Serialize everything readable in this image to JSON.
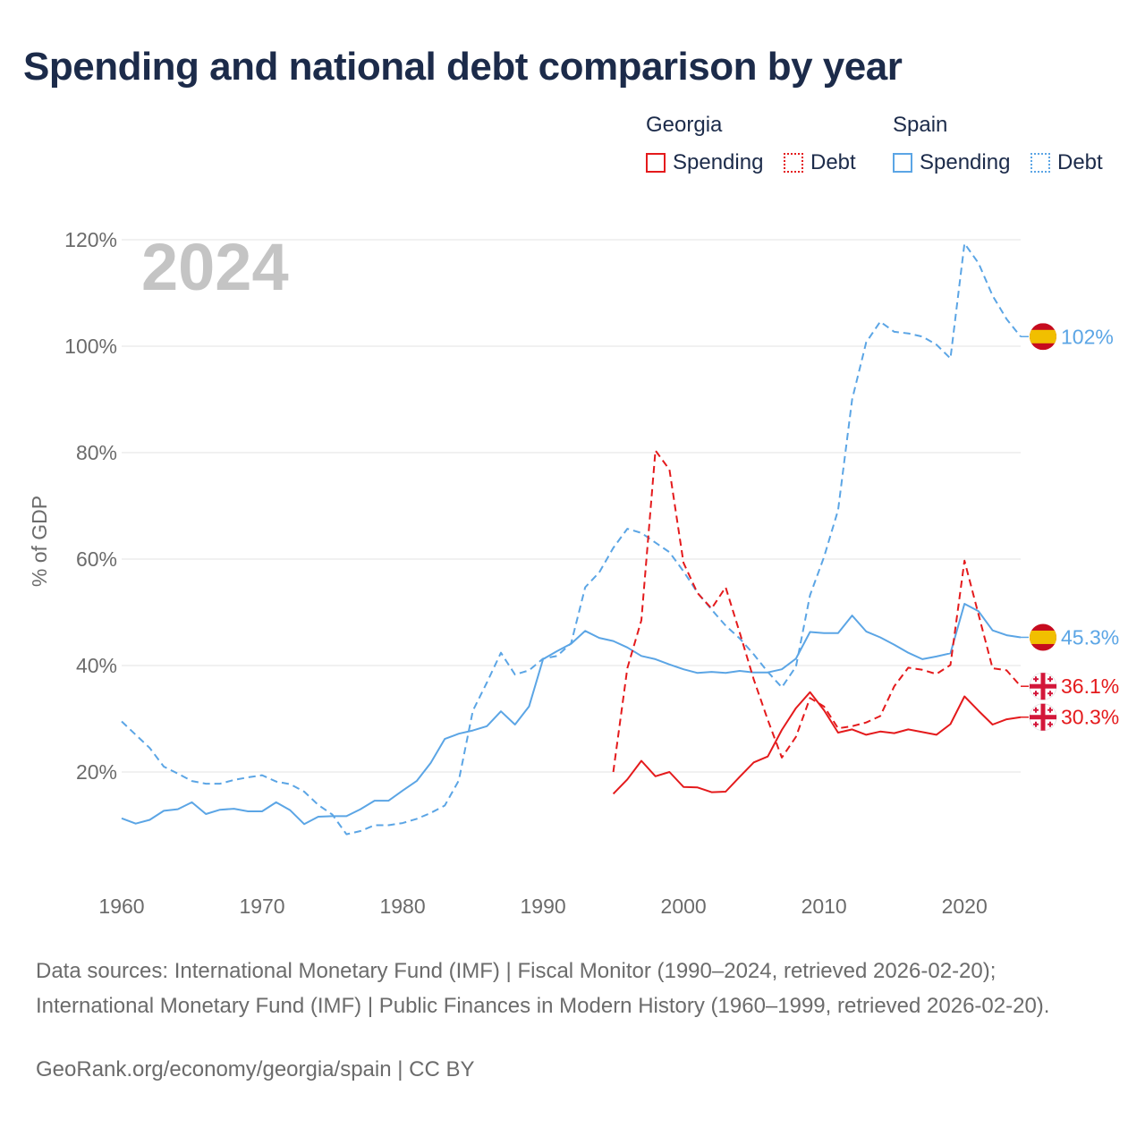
{
  "title": "Spending and national debt comparison by year",
  "legend": {
    "groups": [
      {
        "country": "Georgia",
        "items": [
          "Spending",
          "Debt"
        ],
        "color": "#e41a1c"
      },
      {
        "country": "Spain",
        "items": [
          "Spending",
          "Debt"
        ],
        "color": "#5ba5e5"
      }
    ]
  },
  "year_label": "2024",
  "sources": "Data sources: International Monetary Fund (IMF) | Fiscal Monitor (1990–2024, retrieved 2026-02-20); International Monetary Fund (IMF) | Public Finances in Modern History (1960–1999, retrieved 2026-02-20).",
  "credit": "GeoRank.org/economy/georgia/spain | CC BY",
  "chart_data": {
    "type": "line",
    "title": "Spending and national debt comparison by year",
    "xlabel": "",
    "ylabel": "% of GDP",
    "xlim": [
      1960,
      2024
    ],
    "ylim": [
      0,
      120
    ],
    "x_ticks": [
      1960,
      1970,
      1980,
      1990,
      2000,
      2010,
      2020
    ],
    "x_tick_labels": [
      "1960",
      "1970",
      "1980",
      "1990",
      "2000",
      "2010",
      "2020"
    ],
    "y_ticks": [
      20,
      40,
      60,
      80,
      100,
      120
    ],
    "y_tick_labels": [
      "20%",
      "40%",
      "60%",
      "80%",
      "100%",
      "120%"
    ],
    "grid": true,
    "series": [
      {
        "name": "Spain Debt",
        "country": "Spain",
        "metric": "Debt",
        "color": "#5ba5e5",
        "dashed": true,
        "end_label": "102%",
        "flag": "spain",
        "x": [
          1960,
          1961,
          1962,
          1963,
          1964,
          1965,
          1966,
          1967,
          1968,
          1969,
          1970,
          1971,
          1972,
          1973,
          1974,
          1975,
          1976,
          1977,
          1978,
          1979,
          1980,
          1981,
          1982,
          1983,
          1984,
          1985,
          1986,
          1987,
          1988,
          1989,
          1990,
          1991,
          1992,
          1993,
          1994,
          1995,
          1996,
          1997,
          1998,
          1999,
          2000,
          2001,
          2002,
          2003,
          2004,
          2005,
          2006,
          2007,
          2008,
          2009,
          2010,
          2011,
          2012,
          2013,
          2014,
          2015,
          2016,
          2017,
          2018,
          2019,
          2020,
          2021,
          2022,
          2023,
          2024
        ],
        "values": [
          29.5,
          27,
          24.5,
          21,
          19.7,
          18.3,
          17.8,
          17.8,
          18.5,
          19,
          19.4,
          18.2,
          17.7,
          16.3,
          13.8,
          12,
          8.3,
          8.9,
          10,
          10,
          10.4,
          11.2,
          12.3,
          13.7,
          18.4,
          31.5,
          36.8,
          42.4,
          38.3,
          39.1,
          41.3,
          41.8,
          44.2,
          54.7,
          57.5,
          62.1,
          65.7,
          64.9,
          63.1,
          61.3,
          57.7,
          53.7,
          50.5,
          47.5,
          45.1,
          42.1,
          38.8,
          35.9,
          39.8,
          53.2,
          60.4,
          69.2,
          90,
          100.7,
          104.6,
          102.7,
          102.4,
          101.8,
          100.3,
          97.7,
          119.3,
          115.6,
          109.5,
          105.1,
          101.8
        ]
      },
      {
        "name": "Spain Spending",
        "country": "Spain",
        "metric": "Spending",
        "color": "#5ba5e5",
        "dashed": false,
        "end_label": "45.3%",
        "flag": "spain",
        "x": [
          1960,
          1961,
          1962,
          1963,
          1964,
          1965,
          1966,
          1967,
          1968,
          1969,
          1970,
          1971,
          1972,
          1973,
          1974,
          1975,
          1976,
          1977,
          1978,
          1979,
          1980,
          1981,
          1982,
          1983,
          1984,
          1985,
          1986,
          1987,
          1988,
          1989,
          1990,
          1991,
          1992,
          1993,
          1994,
          1995,
          1996,
          1997,
          1998,
          1999,
          2000,
          2001,
          2002,
          2003,
          2004,
          2005,
          2006,
          2007,
          2008,
          2009,
          2010,
          2011,
          2012,
          2013,
          2014,
          2015,
          2016,
          2017,
          2018,
          2019,
          2020,
          2021,
          2022,
          2023,
          2024
        ],
        "values": [
          11.3,
          10.3,
          11,
          12.7,
          13,
          14.3,
          12.1,
          12.9,
          13.1,
          12.6,
          12.6,
          14.3,
          12.8,
          10.2,
          11.6,
          11.7,
          11.7,
          13,
          14.6,
          14.6,
          16.5,
          18.3,
          21.7,
          26.2,
          27.2,
          27.8,
          28.6,
          31.4,
          28.9,
          32.3,
          41.2,
          42.7,
          44.1,
          46.5,
          45.2,
          44.6,
          43.4,
          41.8,
          41.2,
          40.2,
          39.3,
          38.6,
          38.8,
          38.6,
          39,
          38.7,
          38.7,
          39.3,
          41.3,
          46.3,
          46.1,
          46.1,
          49.4,
          46.4,
          45.3,
          43.9,
          42.4,
          41.2,
          41.7,
          42.3,
          51.6,
          50.2,
          46.6,
          45.7,
          45.3
        ]
      },
      {
        "name": "Georgia Debt",
        "country": "Georgia",
        "metric": "Debt",
        "color": "#e41a1c",
        "dashed": true,
        "end_label": "36.1%",
        "flag": "georgia",
        "x": [
          1995,
          1996,
          1997,
          1998,
          1999,
          2000,
          2001,
          2002,
          2003,
          2004,
          2005,
          2006,
          2007,
          2008,
          2009,
          2010,
          2011,
          2012,
          2013,
          2014,
          2015,
          2016,
          2017,
          2018,
          2019,
          2020,
          2021,
          2022,
          2023,
          2024
        ],
        "values": [
          20,
          39.5,
          48.5,
          80.4,
          76.8,
          59.3,
          53.6,
          50.7,
          54.7,
          46.2,
          37.4,
          29.8,
          22.7,
          26.6,
          33.9,
          32.3,
          28.2,
          28.6,
          29.3,
          30.5,
          36.1,
          39.6,
          39.2,
          38.4,
          40.1,
          59.7,
          49.6,
          39.5,
          39.1,
          36.1
        ]
      },
      {
        "name": "Georgia Spending",
        "country": "Georgia",
        "metric": "Spending",
        "color": "#e41a1c",
        "dashed": false,
        "end_label": "30.3%",
        "flag": "georgia",
        "x": [
          1995,
          1996,
          1997,
          1998,
          1999,
          2000,
          2001,
          2002,
          2003,
          2004,
          2005,
          2006,
          2007,
          2008,
          2009,
          2010,
          2011,
          2012,
          2013,
          2014,
          2015,
          2016,
          2017,
          2018,
          2019,
          2020,
          2021,
          2022,
          2023,
          2024
        ],
        "values": [
          15.9,
          18.6,
          22.1,
          19.2,
          20,
          17.2,
          17.1,
          16.2,
          16.3,
          19.1,
          21.8,
          22.9,
          27.9,
          32,
          35,
          31.6,
          27.4,
          28,
          27,
          27.6,
          27.3,
          28,
          27.5,
          27,
          29,
          34.2,
          31.5,
          28.9,
          29.9,
          30.3
        ]
      }
    ]
  }
}
